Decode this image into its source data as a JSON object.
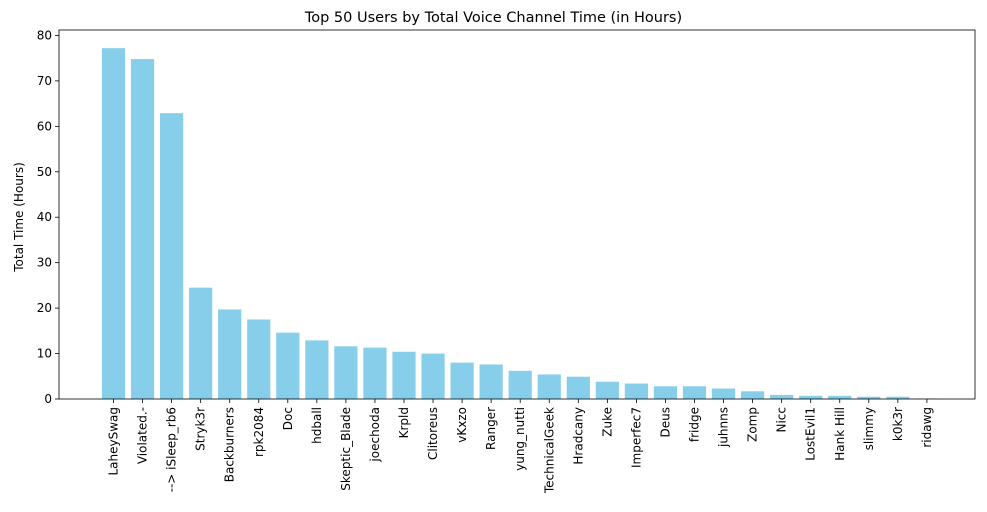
{
  "chart_data": {
    "type": "bar",
    "title": "Top 50 Users by Total Voice Channel Time (in Hours)",
    "xlabel": "",
    "ylabel": "Total Time (Hours)",
    "ylim": [
      0,
      81.2
    ],
    "yticks": [
      0,
      10,
      20,
      30,
      40,
      50,
      60,
      70,
      80
    ],
    "grid": false,
    "bar_color": "#87ceeb",
    "categories": [
      "LaheySwag",
      "Violated.-",
      "--> iSleep_rb6",
      "Stryk3r",
      "Backburners",
      "rpk2084",
      "Doc",
      "hdball",
      "Skeptic_Blade",
      "joechoda",
      "Krpld",
      "Clitoreus",
      "vKxzo",
      "Ranger",
      "yung_nutti",
      "TechnicalGeek",
      "Hradcany",
      "Zuke",
      "Imperfec7",
      "Deus",
      "fridge",
      "juhnns",
      "Zomp",
      "Nicc",
      "LostEvil1",
      "Hank Hill",
      "slimmy",
      "k0k3r",
      "ridawg"
    ],
    "values": [
      77.2,
      74.8,
      62.9,
      24.5,
      19.7,
      17.5,
      14.6,
      12.9,
      11.6,
      11.3,
      10.4,
      10.0,
      8.0,
      7.6,
      6.2,
      5.4,
      4.9,
      3.8,
      3.4,
      2.8,
      2.8,
      2.3,
      1.7,
      0.9,
      0.7,
      0.7,
      0.5,
      0.5,
      0.1
    ]
  }
}
